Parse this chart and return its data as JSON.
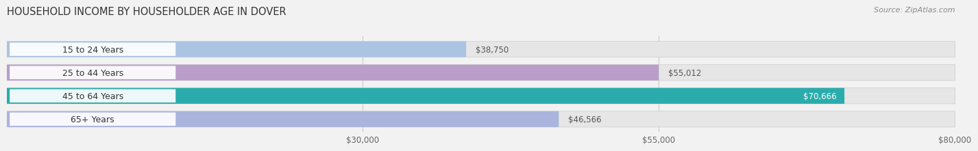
{
  "title": "HOUSEHOLD INCOME BY HOUSEHOLDER AGE IN DOVER",
  "source": "Source: ZipAtlas.com",
  "categories": [
    "15 to 24 Years",
    "25 to 44 Years",
    "45 to 64 Years",
    "65+ Years"
  ],
  "values": [
    38750,
    55012,
    70666,
    46566
  ],
  "bar_colors": [
    "#aac4e2",
    "#b89ec8",
    "#2aacac",
    "#aab4dc"
  ],
  "bar_labels": [
    "$38,750",
    "$55,012",
    "$70,666",
    "$46,566"
  ],
  "label_inside": [
    false,
    false,
    true,
    false
  ],
  "label_color_inside": "#ffffff",
  "label_color_outside": "#555555",
  "xmin": 0,
  "xmax": 80000,
  "xticks": [
    30000,
    55000,
    80000
  ],
  "xtick_labels": [
    "$30,000",
    "$55,000",
    "$80,000"
  ],
  "background_color": "#f2f2f2",
  "bar_bg_color": "#e6e6e6",
  "bar_height": 0.68,
  "title_fontsize": 10.5,
  "source_fontsize": 8,
  "label_fontsize": 8.5,
  "category_fontsize": 9,
  "tick_fontsize": 8.5,
  "pill_color": "#ffffff",
  "pill_alpha": 0.92
}
